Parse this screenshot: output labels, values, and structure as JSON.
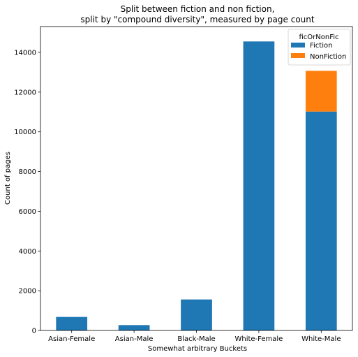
{
  "chart_data": {
    "type": "bar",
    "stacked": true,
    "title": "Split between fiction and non fiction,",
    "subtitle": "split by \"compound diversity\", measured by page count",
    "xlabel": "Somewhat arbitrary Buckets",
    "ylabel": "Count of pages",
    "categories": [
      "Asian-Female",
      "Asian-Male",
      "Black-Male",
      "White-Female",
      "White-Male"
    ],
    "series": [
      {
        "name": "Fiction",
        "color": "#1f77b4",
        "values": [
          680,
          270,
          1560,
          14550,
          11020
        ]
      },
      {
        "name": "NonFiction",
        "color": "#ff7f0e",
        "values": [
          0,
          0,
          0,
          0,
          2050
        ]
      }
    ],
    "ylim": [
      0,
      15300
    ],
    "yticks": [
      0,
      2000,
      4000,
      6000,
      8000,
      10000,
      12000,
      14000
    ],
    "grid": false,
    "legend": {
      "title": "ficOrNonFic",
      "placement": "top-right"
    }
  }
}
